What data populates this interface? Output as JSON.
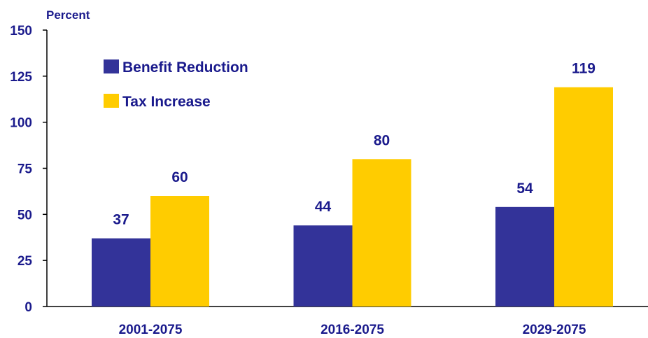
{
  "chart_data": {
    "type": "bar",
    "title": "",
    "xlabel": "",
    "ylabel": "Percent",
    "ylim": [
      0,
      150
    ],
    "yticks": [
      0,
      25,
      50,
      75,
      100,
      125,
      150
    ],
    "categories": [
      "2001-2075",
      "2016-2075",
      "2029-2075"
    ],
    "series": [
      {
        "name": "Benefit Reduction",
        "values": [
          37,
          44,
          54
        ],
        "color": "#333399"
      },
      {
        "name": "Tax Increase",
        "values": [
          60,
          80,
          119
        ],
        "color": "#ffcc00"
      }
    ],
    "legend": "top-left",
    "grid": false,
    "text_color": "#1a1a8c"
  }
}
